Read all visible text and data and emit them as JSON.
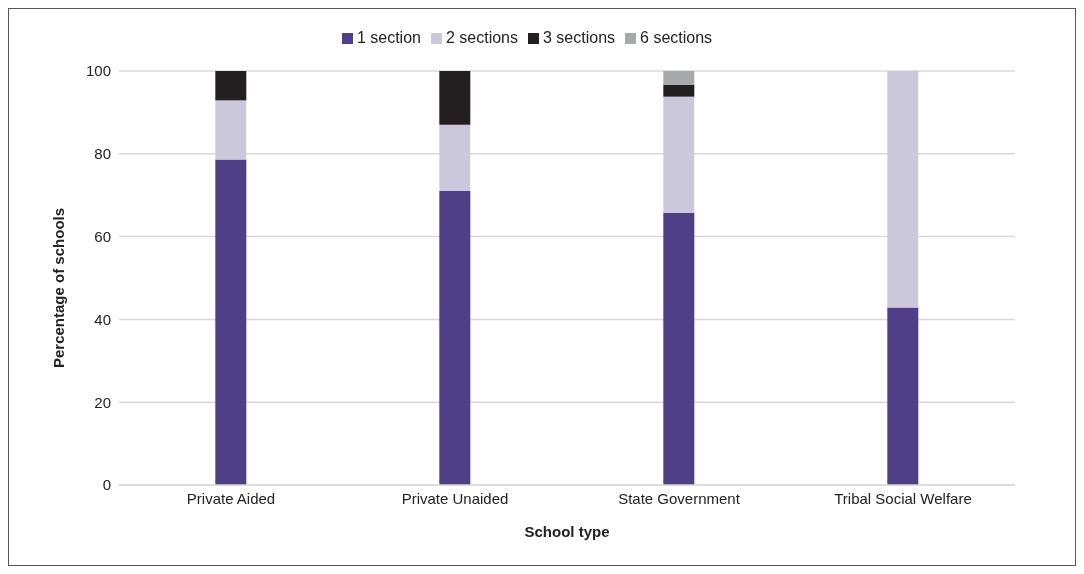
{
  "chart_data": {
    "type": "bar",
    "stacked": true,
    "xlabel": "School type",
    "ylabel": "Percentage of schools",
    "categories": [
      "Private Aided",
      "Private Unaided",
      "State Government",
      "Tribal Social Welfare"
    ],
    "series": [
      {
        "name": "1 section",
        "color": "#4e3f86",
        "values": [
          78.6,
          71,
          65.7,
          42.9
        ]
      },
      {
        "name": "2 sections",
        "color": "#ccc8dc",
        "values": [
          14.3,
          16,
          28.1,
          57.1
        ]
      },
      {
        "name": "3 sections",
        "color": "#231f20",
        "values": [
          7.1,
          13,
          2.9,
          null
        ]
      },
      {
        "name": "6 sections",
        "color": "#a7a9ac",
        "values": [
          null,
          null,
          3.3,
          null
        ]
      }
    ],
    "ylim": [
      0,
      100
    ],
    "yticks": [
      0,
      20,
      40,
      60,
      80,
      100
    ],
    "grid": "y",
    "legend": "top"
  }
}
